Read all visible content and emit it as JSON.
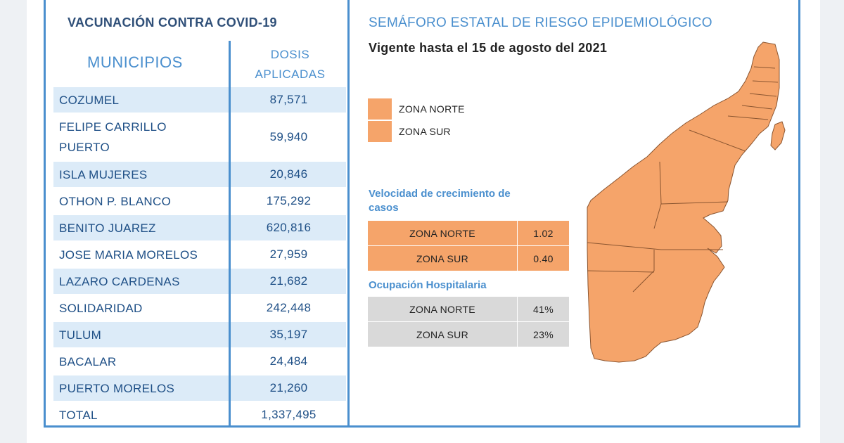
{
  "left": {
    "title": "VACUNACIÓN CONTRA COVID-19",
    "headers": {
      "municipios": "MUNICIPIOS",
      "dosis_line1": "DOSIS",
      "dosis_line2": "APLICADAS"
    },
    "rows": [
      {
        "municipio": "COZUMEL",
        "dosis": "87,571"
      },
      {
        "municipio_line1": "FELIPE CARRILLO",
        "municipio_line2": "PUERTO",
        "dosis": "59,940"
      },
      {
        "municipio": "ISLA MUJERES",
        "dosis": "20,846"
      },
      {
        "municipio": "OTHON P. BLANCO",
        "dosis": "175,292"
      },
      {
        "municipio": "BENITO JUAREZ",
        "dosis": "620,816"
      },
      {
        "municipio": "JOSE MARIA MORELOS",
        "dosis": "27,959"
      },
      {
        "municipio": "LAZARO CARDENAS",
        "dosis": "21,682"
      },
      {
        "municipio": "SOLIDARIDAD",
        "dosis": "242,448"
      },
      {
        "municipio": "TULUM",
        "dosis": "35,197"
      },
      {
        "municipio": "BACALAR",
        "dosis": "24,484"
      },
      {
        "municipio": "PUERTO MORELOS",
        "dosis": "21,260"
      },
      {
        "municipio": "TOTAL",
        "dosis": "1,337,495"
      }
    ]
  },
  "right": {
    "title": "SEMÁFORO ESTATAL DE RIESGO EPIDEMIOLÓGICO",
    "subtitle": "Vigente hasta el 15 de agosto del 2021",
    "legend": [
      {
        "label": "ZONA NORTE",
        "color": "#f5a46a"
      },
      {
        "label": "ZONA SUR",
        "color": "#f5a46a"
      }
    ],
    "velocidad": {
      "label_line1": "Velocidad de crecimiento de",
      "label_line2": "casos",
      "rows": [
        {
          "zona": "ZONA NORTE",
          "valor": "1.02"
        },
        {
          "zona": "ZONA SUR",
          "valor": "0.40"
        }
      ]
    },
    "ocupacion": {
      "label": "Ocupación Hospitalaria",
      "rows": [
        {
          "zona": "ZONA NORTE",
          "valor": "41%"
        },
        {
          "zona": "ZONA SUR",
          "valor": "23%"
        }
      ]
    },
    "map_color": "#f5a46a"
  },
  "colors": {
    "accent_blue": "#4a8fce",
    "row_shade": "#dcebf8",
    "text_navy": "#1e4f86",
    "risk_orange": "#f5a46a",
    "neutral_gray": "#d9d9d9"
  }
}
